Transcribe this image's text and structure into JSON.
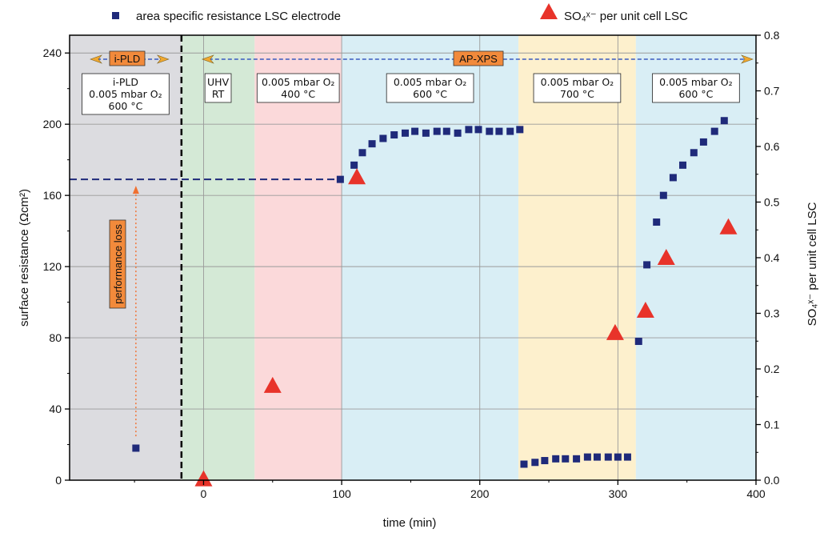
{
  "chart_data": {
    "type": "scatter",
    "xlabel": "time (min)",
    "ylabel": "surface resistance (Ωcm²)",
    "y2label": "SO₄ˣ⁻ per unit cell LSC",
    "xlim": [
      -97,
      400
    ],
    "ylim": [
      0,
      250
    ],
    "y2lim": [
      0,
      0.8
    ],
    "x_ticks": [
      "0",
      "100",
      "200",
      "300",
      "400"
    ],
    "y_ticks": [
      "0",
      "40",
      "80",
      "120",
      "160",
      "200",
      "240"
    ],
    "y2_ticks": [
      "0.0",
      "0.1",
      "0.2",
      "0.3",
      "0.4",
      "0.5",
      "0.6",
      "0.7",
      "0.8"
    ],
    "grid": "horizontal at y-ticks and vertical at x-ticks",
    "legend": [
      {
        "label": "area specific resistance LSC electrode",
        "marker": "square",
        "color": "#1f2a7a"
      },
      {
        "label": "SO₄ˣ⁻ per unit cell LSC",
        "marker": "triangle",
        "color": "#e8332a"
      }
    ],
    "series": [
      {
        "name": "area specific resistance LSC electrode",
        "axis": "left",
        "color": "#1f2a7a",
        "points": [
          [
            -49,
            18
          ],
          [
            99,
            169
          ],
          [
            109,
            177
          ],
          [
            115,
            184
          ],
          [
            122,
            189
          ],
          [
            130,
            192
          ],
          [
            138,
            194
          ],
          [
            146,
            195
          ],
          [
            153,
            196
          ],
          [
            161,
            195
          ],
          [
            169,
            196
          ],
          [
            176,
            196
          ],
          [
            184,
            195
          ],
          [
            192,
            197
          ],
          [
            199,
            197
          ],
          [
            207,
            196
          ],
          [
            214,
            196
          ],
          [
            222,
            196
          ],
          [
            229,
            197
          ],
          [
            232,
            9
          ],
          [
            240,
            10
          ],
          [
            247,
            11
          ],
          [
            255,
            12
          ],
          [
            262,
            12
          ],
          [
            270,
            12
          ],
          [
            278,
            13
          ],
          [
            285,
            13
          ],
          [
            293,
            13
          ],
          [
            300,
            13
          ],
          [
            307,
            13
          ],
          [
            315,
            78
          ],
          [
            321,
            121
          ],
          [
            328,
            145
          ],
          [
            333,
            160
          ],
          [
            340,
            170
          ],
          [
            347,
            177
          ],
          [
            355,
            184
          ],
          [
            362,
            190
          ],
          [
            370,
            196
          ],
          [
            377,
            202
          ]
        ]
      },
      {
        "name": "SO₄ˣ⁻ per unit cell LSC",
        "axis": "right",
        "color": "#e8332a",
        "points": [
          [
            0,
            0.002
          ],
          [
            50,
            0.17
          ],
          [
            111,
            0.545
          ],
          [
            298,
            0.265
          ],
          [
            320,
            0.305
          ],
          [
            335,
            0.4
          ],
          [
            380,
            0.455
          ]
        ]
      }
    ],
    "reference_line": {
      "y": 169,
      "x_from": -97,
      "x_to": 99,
      "style": "dashed",
      "color": "#1f2a7a"
    },
    "divider_x": -16,
    "regions": [
      {
        "x0": -97,
        "x1": -16,
        "color": "#dcdce0",
        "lines": [
          "i-PLD",
          "0.005 mbar O₂",
          "600 °C"
        ]
      },
      {
        "x0": -16,
        "x1": 37,
        "color": "#d4e9d6",
        "lines": [
          "UHV",
          "RT"
        ]
      },
      {
        "x0": 37,
        "x1": 100,
        "color": "#fbd9da",
        "lines": [
          "0.005 mbar O₂",
          "400 °C"
        ]
      },
      {
        "x0": 100,
        "x1": 228,
        "color": "#d9eef5",
        "lines": [
          "0.005 mbar O₂",
          "600 °C"
        ]
      },
      {
        "x0": 228,
        "x1": 313,
        "color": "#fdf0cd",
        "lines": [
          "0.005 mbar O₂",
          "700 °C"
        ]
      },
      {
        "x0": 313,
        "x1": 400,
        "color": "#d9eef5",
        "lines": [
          "0.005 mbar O₂",
          "600 °C"
        ]
      }
    ],
    "annotations": {
      "ipld_label": "i-PLD",
      "apxps_label": "AP-XPS",
      "performance_loss": "performance loss"
    },
    "colors": {
      "square": "#1f2a7a",
      "triangle": "#e8332a",
      "label_box": "#f28a3b",
      "arrow": "#3a5bc0",
      "arrow_head": "#f0a830",
      "grid": "#9a9a9a"
    }
  }
}
